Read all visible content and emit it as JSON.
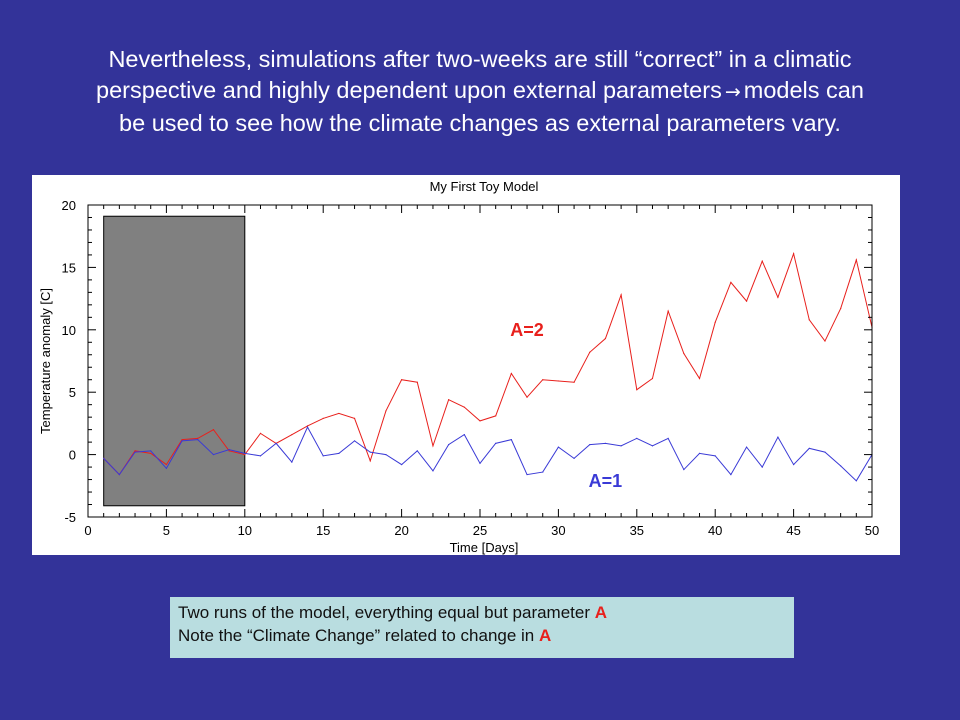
{
  "slide": {
    "title_lines": [
      "Nevertheless, simulations after two-weeks are still “correct” in a climatic",
      "perspective and highly dependent upon external parameters",
      "models can",
      "be used to see how the climate changes as external parameters vary."
    ],
    "arrow_icon": "right-arrow-icon",
    "caption": {
      "line1_text": "Two runs of the model, everything equal but parameter ",
      "line1_param": "A",
      "line2_text": "Note the “Climate Change” related to change in ",
      "line2_param": "A"
    },
    "colors": {
      "background": "#333399",
      "caption_bg": "#b9dde0",
      "highlight": "#e8201c"
    }
  },
  "chart_data": {
    "type": "line",
    "title": "My First Toy Model",
    "xlabel": "Time [Days]",
    "ylabel": "Temperature anomaly [C]",
    "xlim": [
      0,
      50
    ],
    "ylim": [
      -5,
      20
    ],
    "xticks": [
      0,
      5,
      10,
      15,
      20,
      25,
      30,
      35,
      40,
      45,
      50
    ],
    "yticks": [
      -5,
      0,
      5,
      10,
      15,
      20
    ],
    "grid": false,
    "shaded_region": {
      "x": [
        1,
        10
      ],
      "y": [
        -4.1,
        19.1
      ],
      "color": "#808080"
    },
    "x": [
      1,
      2,
      3,
      4,
      5,
      6,
      7,
      8,
      9,
      10,
      11,
      12,
      13,
      14,
      15,
      16,
      17,
      18,
      19,
      20,
      21,
      22,
      23,
      24,
      25,
      26,
      27,
      28,
      29,
      30,
      31,
      32,
      33,
      34,
      35,
      36,
      37,
      38,
      39,
      40,
      41,
      42,
      43,
      44,
      45,
      46,
      47,
      48,
      49,
      50
    ],
    "series": [
      {
        "name": "A=2",
        "color": "#e8201c",
        "label_at": [
          28,
          9.5
        ],
        "values": [
          -0.3,
          -1.6,
          0.3,
          0.1,
          -0.8,
          1.2,
          1.3,
          2.0,
          0.3,
          0.0,
          1.7,
          0.9,
          1.6,
          2.3,
          2.9,
          3.3,
          2.9,
          -0.5,
          3.5,
          6.0,
          5.8,
          0.7,
          4.4,
          3.8,
          2.7,
          3.1,
          6.5,
          4.6,
          6.0,
          5.9,
          5.8,
          8.2,
          9.3,
          12.8,
          5.2,
          6.1,
          11.5,
          8.1,
          6.1,
          10.6,
          13.8,
          12.3,
          15.5,
          12.6,
          16.1,
          10.8,
          9.1,
          11.7,
          15.6,
          10.2
        ]
      },
      {
        "name": "A=1",
        "color": "#3a3ad6",
        "label_at": [
          33,
          -2.6
        ],
        "values": [
          -0.3,
          -1.6,
          0.2,
          0.3,
          -1.1,
          1.1,
          1.2,
          0.0,
          0.4,
          0.1,
          -0.1,
          0.9,
          -0.6,
          2.2,
          -0.1,
          0.1,
          1.1,
          0.2,
          0.0,
          -0.8,
          0.3,
          -1.3,
          0.8,
          1.6,
          -0.7,
          0.9,
          1.2,
          -1.6,
          -1.4,
          0.6,
          -0.3,
          0.8,
          0.9,
          0.7,
          1.3,
          0.7,
          1.3,
          -1.2,
          0.1,
          -0.1,
          -1.6,
          0.6,
          -1.0,
          1.4,
          -0.8,
          0.5,
          0.2,
          -0.9,
          -2.1,
          -0.0
        ]
      }
    ]
  }
}
